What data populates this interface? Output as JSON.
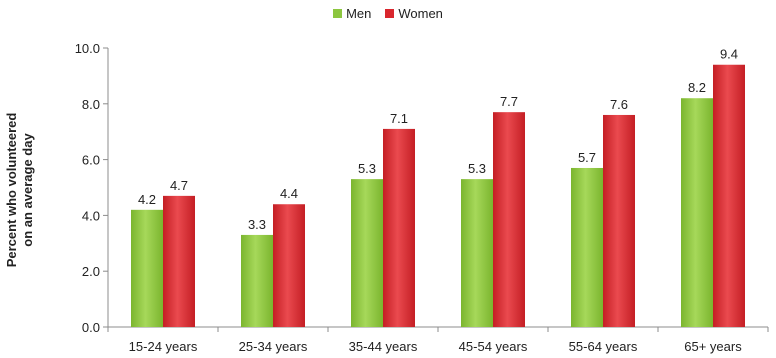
{
  "chart_data": {
    "type": "bar",
    "categories": [
      "15-24 years",
      "25-34 years",
      "35-44 years",
      "45-54 years",
      "55-64 years",
      "65+ years"
    ],
    "series": [
      {
        "name": "Men",
        "color": "#8cc63f",
        "values": [
          4.2,
          3.3,
          5.3,
          5.3,
          5.7,
          8.2
        ],
        "labels": [
          "4.2",
          "3.3",
          "5.3",
          "5.3",
          "5.7",
          "8.2"
        ]
      },
      {
        "name": "Women",
        "color": "#d9262d",
        "values": [
          4.7,
          4.4,
          7.1,
          7.7,
          7.6,
          9.4
        ],
        "labels": [
          "4.7",
          "4.4",
          "7.1",
          "7.7",
          "7.6",
          "9.4"
        ]
      }
    ],
    "ylabel_line1": "Percent who volunteered",
    "ylabel_line2": "on an average day",
    "ylim": [
      0,
      10
    ],
    "yticks": [
      "0.0",
      "2.0",
      "4.0",
      "6.0",
      "8.0",
      "10.0"
    ],
    "legend_position": "top-center",
    "grid": false
  }
}
